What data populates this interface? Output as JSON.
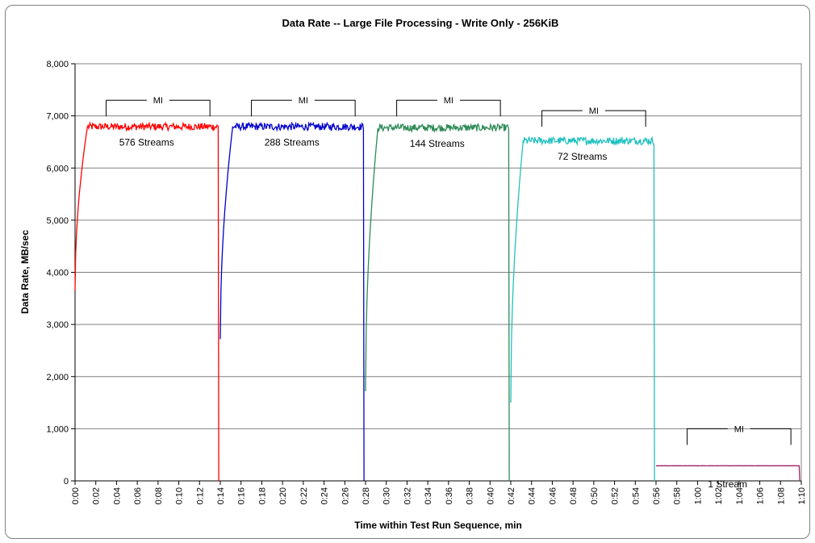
{
  "chart_data": {
    "type": "line",
    "title": "Data Rate -- Large File Processing - Write Only - 256KiB",
    "xlabel": "Time within Test Run Sequence, min",
    "ylabel": "Data Rate, MB/sec",
    "ylim": [
      0,
      8000
    ],
    "xlim": [
      0,
      70
    ],
    "yticks": [
      "0",
      "1,000",
      "2,000",
      "3,000",
      "4,000",
      "5,000",
      "6,000",
      "7,000",
      "8,000"
    ],
    "xticks": [
      "0:00",
      "0:02",
      "0:04",
      "0:06",
      "0:08",
      "0:10",
      "0:12",
      "0:14",
      "0:16",
      "0:18",
      "0:20",
      "0:22",
      "0:24",
      "0:26",
      "0:28",
      "0:30",
      "0:32",
      "0:34",
      "0:36",
      "0:38",
      "0:40",
      "0:42",
      "0:44",
      "0:46",
      "0:48",
      "0:50",
      "0:52",
      "0:54",
      "0:56",
      "0:58",
      "1:00",
      "1:02",
      "1:04",
      "1:06",
      "1:08",
      "1:10"
    ],
    "grid": "horizontal",
    "series": [
      {
        "label": "576 Streams",
        "color": "#ff0000",
        "start": 0.0,
        "end": 13.8,
        "start_value": 3650,
        "plateau": 6800,
        "end_value": 0
      },
      {
        "label": "288 Streams",
        "color": "#0000cc",
        "start": 14.0,
        "end": 27.8,
        "start_value": 2720,
        "plateau": 6800,
        "end_value": 0
      },
      {
        "label": "144 Streams",
        "color": "#2e8b57",
        "start": 28.0,
        "end": 41.8,
        "start_value": 1720,
        "plateau": 6780,
        "end_value": 0
      },
      {
        "label": "72 Streams",
        "color": "#20c0c0",
        "start": 42.0,
        "end": 55.8,
        "start_value": 1500,
        "plateau": 6530,
        "end_value": 0
      },
      {
        "label": "1 Stream",
        "color": "#a0206a",
        "start": 56.0,
        "end": 69.8,
        "start_value": 290,
        "plateau": 290,
        "end_value": 0
      }
    ],
    "annotations": [
      {
        "text": "MI",
        "from": 3.0,
        "to": 13.0,
        "level": 7300
      },
      {
        "text": "MI",
        "from": 17.0,
        "to": 27.0,
        "level": 7300
      },
      {
        "text": "MI",
        "from": 31.0,
        "to": 41.0,
        "level": 7300
      },
      {
        "text": "MI",
        "from": 45.0,
        "to": 55.0,
        "level": 7100
      },
      {
        "text": "MI",
        "from": 59.0,
        "to": 69.0,
        "level": 1000
      }
    ]
  }
}
